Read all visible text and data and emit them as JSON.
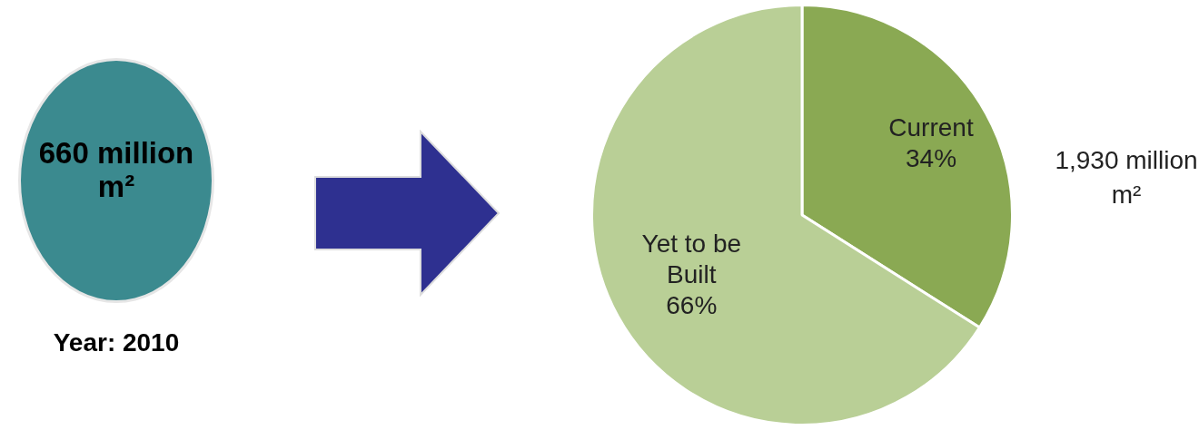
{
  "chart_data": {
    "type": "pie",
    "categories": [
      "Current",
      "Yet to be Built"
    ],
    "values": [
      34,
      66
    ],
    "colors": [
      "#8aa953",
      "#b9cf96"
    ],
    "value_labels": [
      "34%",
      "66%"
    ],
    "annotations": [
      "660 million m²",
      "Year: 2010",
      "1,930 million m²"
    ]
  }
}
